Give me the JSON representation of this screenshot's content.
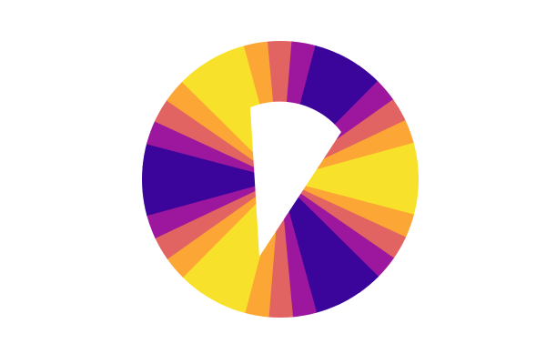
{
  "chart_data": {
    "type": "polar-contour",
    "theta": [
      0,
      10,
      20,
      30,
      40,
      50,
      60,
      70,
      80,
      90,
      100,
      110,
      120,
      130,
      140,
      150,
      160,
      170,
      180,
      190,
      200,
      210,
      220,
      230,
      240,
      250,
      260,
      270,
      280,
      290,
      300,
      310,
      320,
      330,
      340,
      350
    ],
    "values": [
      1,
      0.87,
      0.5,
      0,
      -0.5,
      -0.87,
      -1,
      -0.87,
      -0.5,
      0,
      0.5,
      0.87,
      1,
      0.87,
      0.5,
      0,
      -0.5,
      -0.87,
      -1,
      -0.87,
      -0.5,
      0,
      0.5,
      0.87,
      1,
      0.87,
      0.5,
      0,
      -0.5,
      -0.87,
      -1,
      -0.87,
      -0.5,
      0,
      0.5,
      0.87
    ],
    "levels": [
      -1,
      -0.75,
      -0.5,
      -0.25,
      0,
      0.25,
      0.5,
      0.75,
      1
    ],
    "colors": [
      "#3b049a",
      "#6a00a8",
      "#9c179e",
      "#c33d80",
      "#e16462",
      "#f48b45",
      "#fca636",
      "#f8e12b"
    ]
  }
}
